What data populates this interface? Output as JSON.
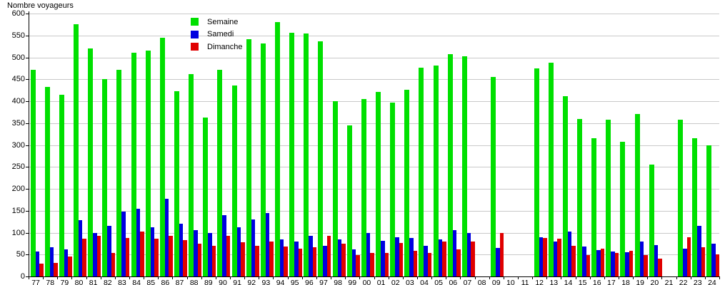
{
  "chart_data": {
    "type": "bar",
    "title": "Nombre voyageurs",
    "categories": [
      "77",
      "78",
      "79",
      "80",
      "81",
      "82",
      "83",
      "84",
      "85",
      "86",
      "87",
      "88",
      "89",
      "90",
      "91",
      "92",
      "93",
      "94",
      "95",
      "96",
      "97",
      "98",
      "99",
      "00",
      "01",
      "02",
      "03",
      "04",
      "05",
      "06",
      "07",
      "08",
      "09",
      "10",
      "11",
      "12",
      "13",
      "14",
      "15",
      "16",
      "17",
      "18",
      "19",
      "20",
      "21",
      "22",
      "23",
      "24"
    ],
    "series": [
      {
        "name": "Semaine",
        "color": "#00e000",
        "values": [
          472,
          432,
          415,
          575,
          521,
          450,
          472,
          511,
          515,
          545,
          423,
          462,
          363,
          472,
          436,
          541,
          532,
          581,
          556,
          555,
          537,
          400,
          345,
          405,
          421,
          397,
          426,
          476,
          481,
          508,
          503,
          null,
          455,
          null,
          null,
          475,
          487,
          412,
          360,
          315,
          358,
          307,
          370,
          255,
          null,
          357,
          315,
          300
        ]
      },
      {
        "name": "Samedi",
        "color": "#0000e0",
        "values": [
          57,
          67,
          62,
          129,
          100,
          115,
          148,
          155,
          113,
          178,
          120,
          105,
          100,
          140,
          113,
          130,
          145,
          84,
          80,
          92,
          70,
          84,
          61,
          100,
          81,
          90,
          88,
          70,
          84,
          105,
          100,
          null,
          65,
          null,
          null,
          89,
          79,
          103,
          68,
          60,
          57,
          56,
          79,
          72,
          null,
          63,
          115,
          74
        ]
      },
      {
        "name": "Dimanche",
        "color": "#e00000",
        "values": [
          30,
          31,
          46,
          86,
          93,
          54,
          87,
          102,
          86,
          93,
          83,
          75,
          70,
          92,
          78,
          70,
          80,
          68,
          63,
          67,
          92,
          75,
          48,
          54,
          53,
          76,
          58,
          53,
          80,
          62,
          80,
          null,
          100,
          null,
          null,
          87,
          86,
          70,
          49,
          63,
          53,
          58,
          49,
          40,
          null,
          89,
          66,
          50
        ]
      }
    ],
    "ylim": [
      0,
      600
    ],
    "y_ticks": [
      "0",
      "50",
      "100",
      "150",
      "200",
      "250",
      "300",
      "350",
      "400",
      "450",
      "500",
      "550",
      "600"
    ],
    "grid": true,
    "legend_position": "top-center",
    "gridline_color": "#c9c9c9",
    "axis_color": "#000000"
  }
}
